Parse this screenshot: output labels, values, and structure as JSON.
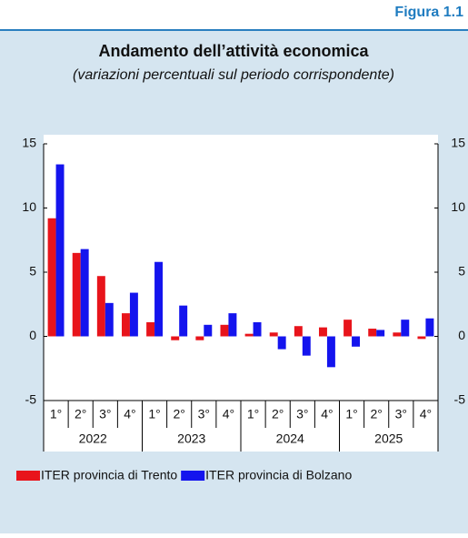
{
  "figure_label": "Figura 1.1",
  "chart_data": {
    "type": "bar",
    "title": "Andamento dell’attività economica",
    "subtitle": "(variazioni percentuali sul periodo corrispondente)",
    "categories": [
      "1°",
      "2°",
      "3°",
      "4°",
      "1°",
      "2°",
      "3°",
      "4°",
      "1°",
      "2°",
      "3°",
      "4°",
      "1°",
      "2°",
      "3°",
      "4°"
    ],
    "groups": [
      "2022",
      "2023",
      "2024",
      "2025"
    ],
    "series": [
      {
        "name": "ITER provincia di Trento",
        "color": "#e8141b",
        "values": [
          9.2,
          6.5,
          4.7,
          1.8,
          1.1,
          -0.3,
          -0.3,
          0.9,
          0.2,
          0.3,
          0.8,
          0.7,
          1.3,
          0.6,
          0.3,
          -0.2
        ]
      },
      {
        "name": "ITER provincia di Bolzano",
        "color": "#1414ee",
        "values": [
          13.4,
          6.8,
          2.6,
          3.4,
          5.8,
          2.4,
          0.9,
          1.8,
          1.1,
          -1.0,
          -1.5,
          -2.4,
          -0.8,
          0.5,
          1.3,
          1.4
        ]
      }
    ],
    "ylim": [
      -5,
      15
    ],
    "yticks": [
      -5,
      0,
      5,
      10,
      15
    ]
  }
}
